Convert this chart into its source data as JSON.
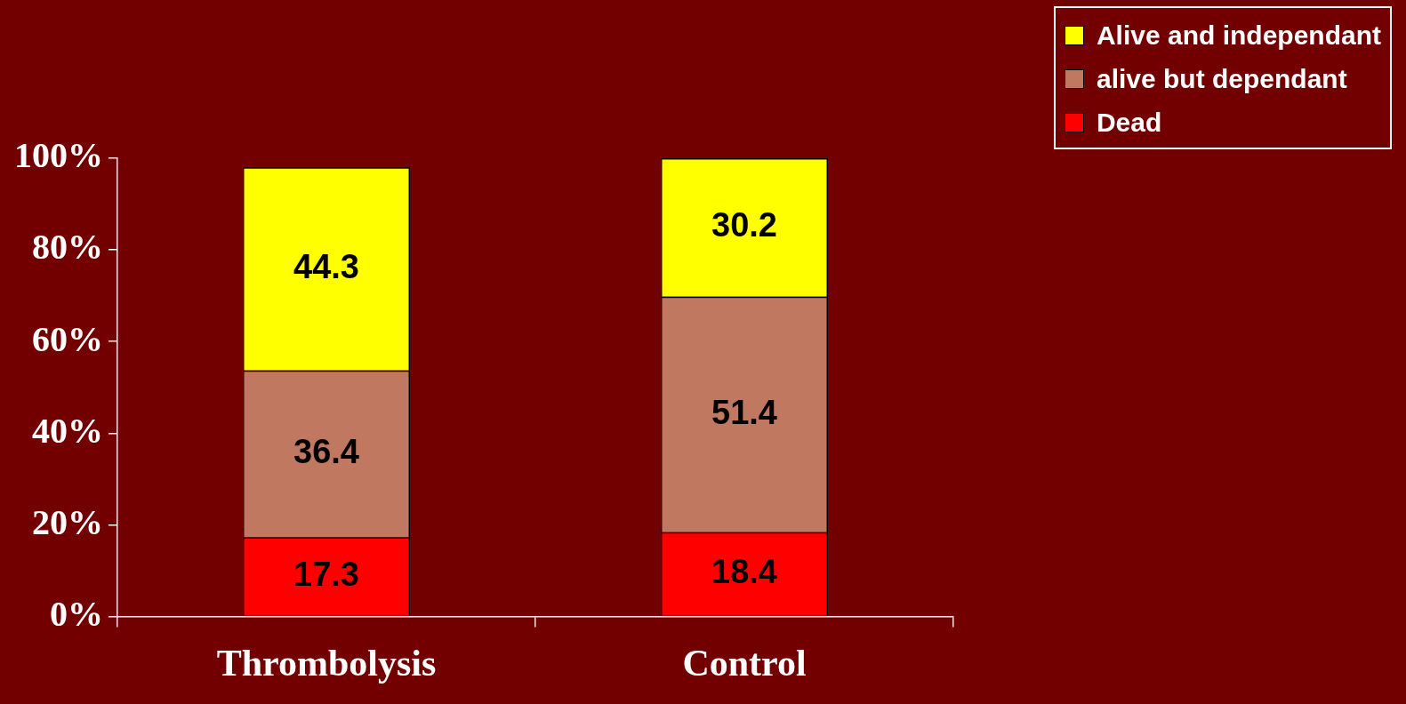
{
  "chart_data": {
    "type": "bar",
    "stacked": true,
    "categories": [
      "Thrombolysis",
      "Control"
    ],
    "series": [
      {
        "name": "Dead",
        "color": "#ff0000",
        "values": [
          17.3,
          18.4
        ]
      },
      {
        "name": "alive but dependant",
        "color": "#c07860",
        "values": [
          36.4,
          51.4
        ]
      },
      {
        "name": "Alive and independant",
        "color": "#ffff00",
        "values": [
          44.3,
          30.2
        ]
      }
    ],
    "ylim": [
      0,
      100
    ],
    "yticks": [
      {
        "value": 0,
        "label": "0%"
      },
      {
        "value": 20,
        "label": "20%"
      },
      {
        "value": 40,
        "label": "40%"
      },
      {
        "value": 60,
        "label": "60%"
      },
      {
        "value": 80,
        "label": "80%"
      },
      {
        "value": 100,
        "label": "100%"
      }
    ],
    "data_labels": true,
    "grid": false,
    "legend": "top right"
  }
}
